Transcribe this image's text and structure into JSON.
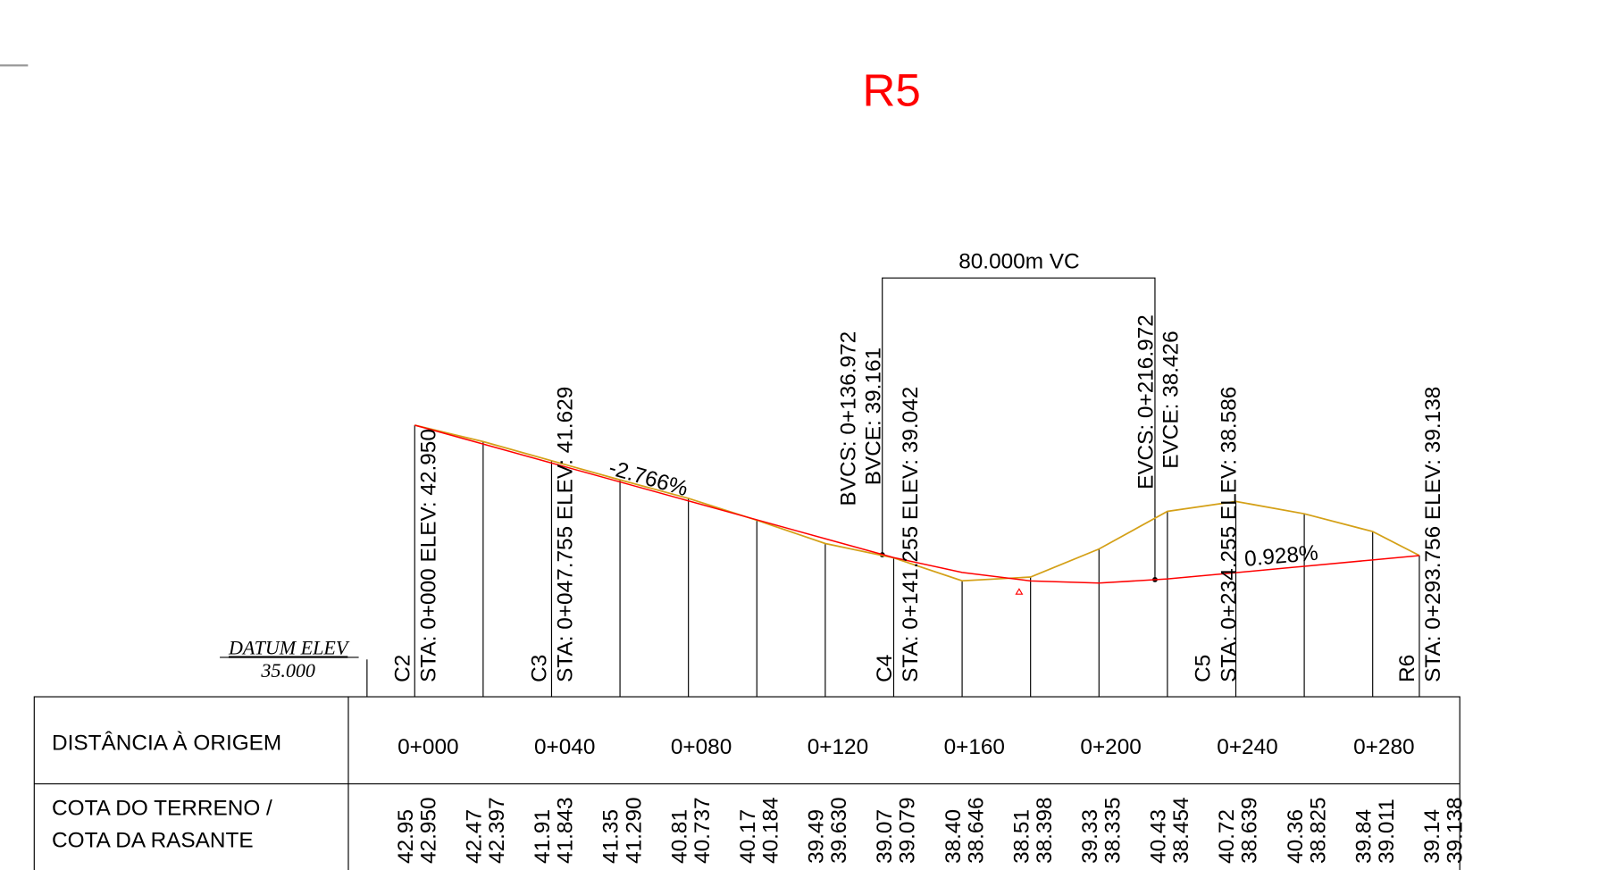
{
  "title": "R5",
  "vertical_curve": {
    "length_label": "80.000m VC",
    "bvcs": "BVCS: 0+136.972",
    "bvce": "BVCE: 39.161",
    "evcs": "EVCS: 0+216.972",
    "evce": "EVCE: 38.426"
  },
  "grades": [
    "-2.766%",
    "0.928%"
  ],
  "stations": [
    {
      "code": "C2",
      "label": "STA: 0+000 ELEV: 42.950"
    },
    {
      "code": "C3",
      "label": "STA: 0+047.755 ELEV: 41.629"
    },
    {
      "code": "C4",
      "label": "STA: 0+141.255 ELEV: 39.042"
    },
    {
      "code": "C5",
      "label": "STA: 0+234.255 ELEV: 38.586"
    },
    {
      "code": "R6",
      "label": "STA: 0+293.756 ELEV: 39.138"
    }
  ],
  "datum": {
    "label": "DATUM ELEV",
    "value": "35.000"
  },
  "table": {
    "row_labels": [
      [
        "DISTÂNCIA À ORIGEM"
      ],
      [
        "COTA DO TERRENO /",
        "COTA DA RASANTE"
      ]
    ],
    "distances": [
      "0+000",
      "0+040",
      "0+080",
      "0+120",
      "0+160",
      "0+200",
      "0+240",
      "0+280"
    ],
    "elevations": [
      [
        "42.95",
        "42.950"
      ],
      [
        "42.47",
        "42.397"
      ],
      [
        "41.91",
        "41.843"
      ],
      [
        "41.35",
        "41.290"
      ],
      [
        "40.81",
        "40.737"
      ],
      [
        "40.17",
        "40.184"
      ],
      [
        "39.49",
        "39.630"
      ],
      [
        "39.07",
        "39.079"
      ],
      [
        "38.40",
        "38.646"
      ],
      [
        "38.51",
        "38.398"
      ],
      [
        "39.33",
        "38.335"
      ],
      [
        "40.43",
        "38.454"
      ],
      [
        "40.72",
        "38.639"
      ],
      [
        "40.36",
        "38.825"
      ],
      [
        "39.84",
        "39.011"
      ],
      [
        "39.14",
        "39.138"
      ]
    ]
  }
}
